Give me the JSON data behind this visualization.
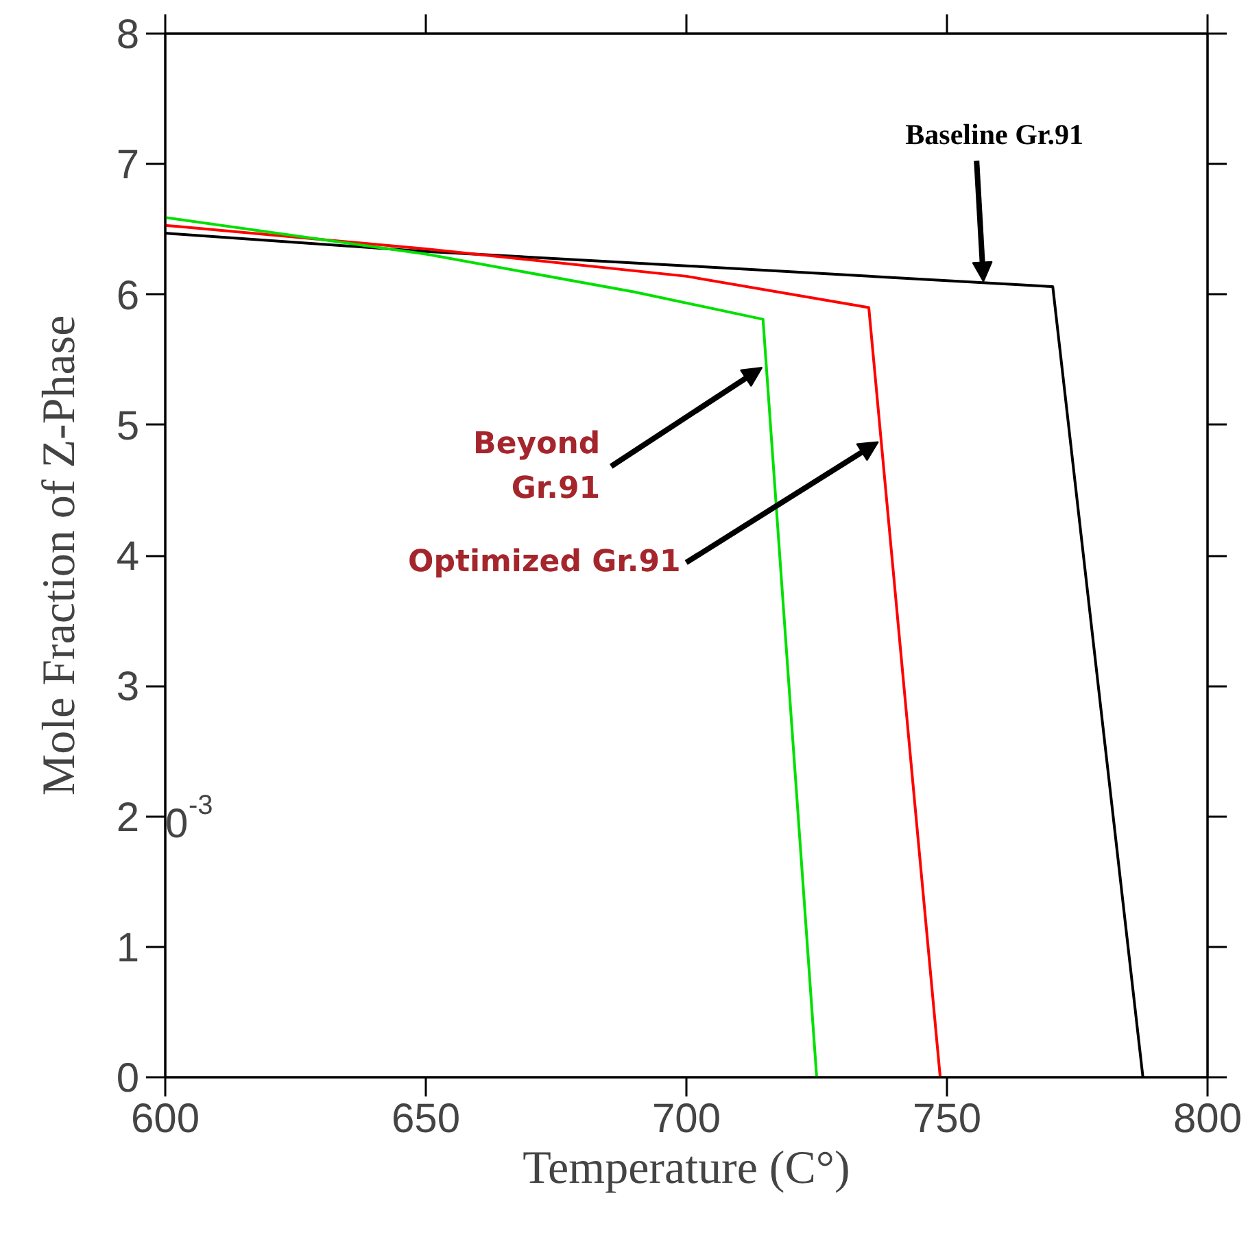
{
  "chart_data": {
    "type": "line",
    "xlabel": "Temperature (C°)",
    "ylabel": "Mole Fraction of Z-Phase",
    "xlim": [
      600,
      800
    ],
    "xticks": [
      600,
      650,
      700,
      750,
      800
    ],
    "ylim": [
      0,
      8
    ],
    "yticks": [
      0,
      1,
      2,
      3,
      4,
      5,
      6,
      7,
      8
    ],
    "grid": false,
    "marker": "none",
    "line_style": "solid",
    "series": [
      {
        "color": "#000000",
        "x": [
          600,
          650,
          700,
          770.3,
          787.6
        ],
        "values": [
          6.47,
          6.33,
          6.22,
          6.06,
          0
        ]
      },
      {
        "color": "#ff0000",
        "x": [
          600,
          650,
          700,
          735,
          748.7
        ],
        "values": [
          6.53,
          6.35,
          6.14,
          5.9,
          0
        ]
      },
      {
        "color": "#00e000",
        "x": [
          600,
          650,
          690,
          714.7,
          725
        ],
        "values": [
          6.59,
          6.31,
          6.02,
          5.81,
          0
        ]
      }
    ],
    "annotations": [
      {
        "text": "Baseline Gr.91",
        "x": 757,
        "y": 6.1
      },
      {
        "text": "Beyond\nGr.91",
        "x": 714.5,
        "y": 5.44
      },
      {
        "text": "Optimized Gr.91",
        "x": 736.8,
        "y": 4.87
      },
      "0$^{-3}$"
    ]
  }
}
